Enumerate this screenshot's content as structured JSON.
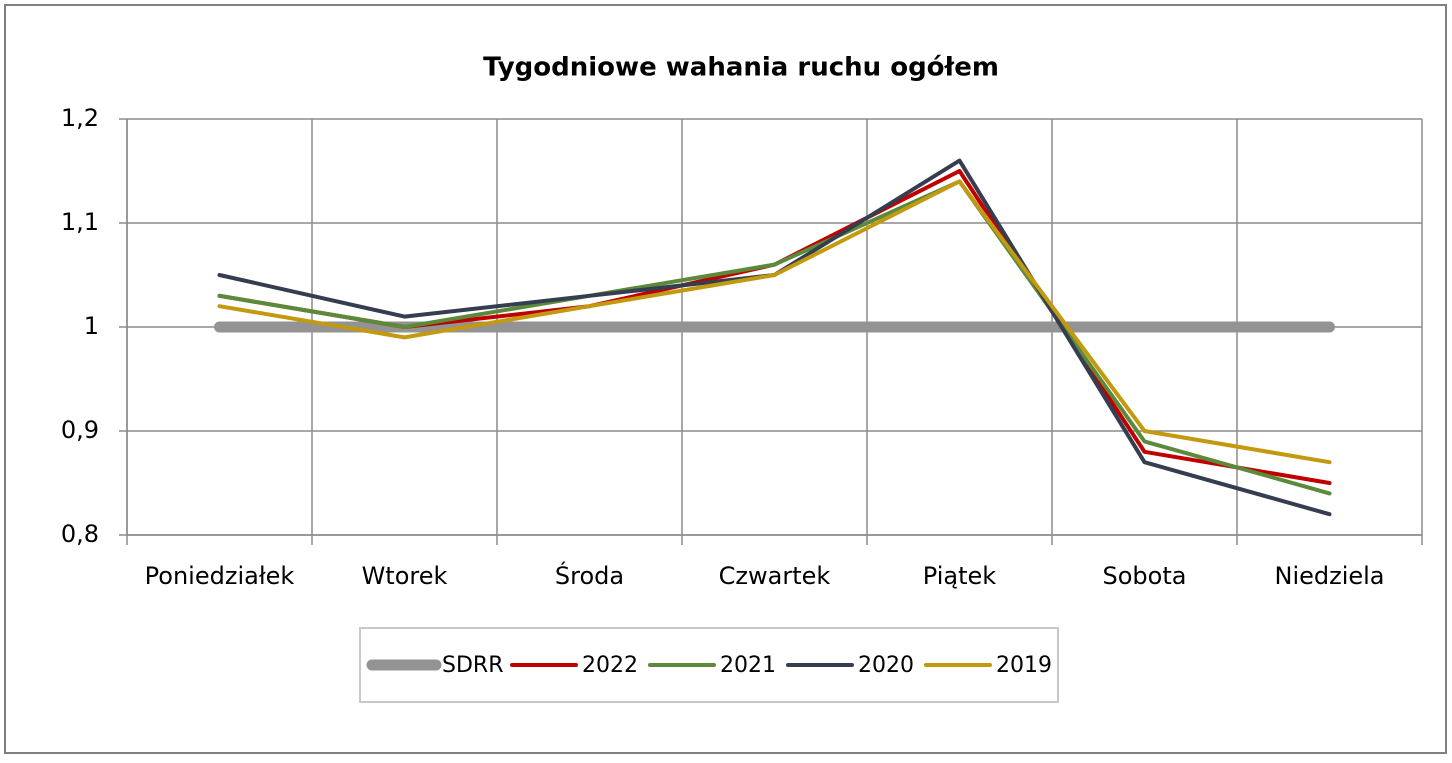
{
  "chart_data": {
    "type": "line",
    "title": "Tygodniowe wahania ruchu ogółem",
    "categories": [
      "Poniedziałek",
      "Wtorek",
      "Środa",
      "Czwartek",
      "Piątek",
      "Sobota",
      "Niedziela"
    ],
    "series": [
      {
        "name": "SDRR",
        "color": "#939393",
        "values": [
          1,
          1,
          1,
          1,
          1,
          1,
          1
        ]
      },
      {
        "name": "2022",
        "color": "#c00000",
        "values": [
          1.03,
          1.0,
          1.02,
          1.06,
          1.15,
          0.88,
          0.85
        ]
      },
      {
        "name": "2021",
        "color": "#5b8a3a",
        "values": [
          1.03,
          1.0,
          1.03,
          1.06,
          1.14,
          0.89,
          0.84
        ]
      },
      {
        "name": "2020",
        "color": "#343e50",
        "values": [
          1.05,
          1.01,
          1.03,
          1.05,
          1.16,
          0.87,
          0.82
        ]
      },
      {
        "name": "2019",
        "color": "#c3990f",
        "values": [
          1.02,
          0.99,
          1.02,
          1.05,
          1.14,
          0.9,
          0.87
        ]
      }
    ],
    "ylim": [
      0.8,
      1.2
    ],
    "yticks": [
      {
        "value": 0.8,
        "label": "0,8"
      },
      {
        "value": 0.9,
        "label": "0,9"
      },
      1,
      {
        "value": 1.1,
        "label": "1,1"
      },
      {
        "value": 1.2,
        "label": "1,2"
      }
    ],
    "grid": true,
    "legend": "bottom"
  }
}
